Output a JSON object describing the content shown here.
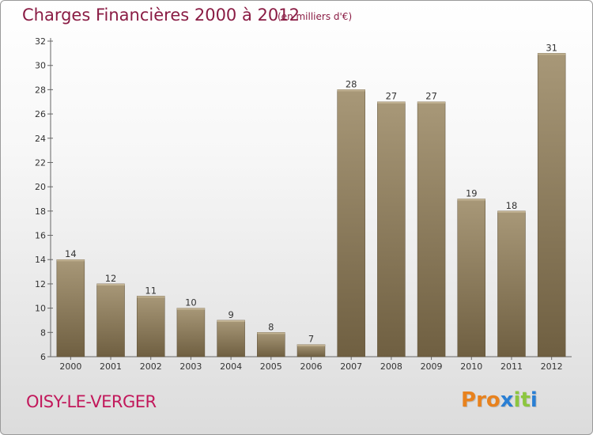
{
  "header": {
    "title": "Charges Financières 2000 à 2012",
    "subtitle": "(en milliers d'€)"
  },
  "footer": {
    "commune": "OISY-LE-VERGER",
    "logo_text": "Proxiti"
  },
  "colors": {
    "title": "#8a1c44",
    "commune": "#c2185b",
    "bar_top": "#a89878",
    "bar_bottom": "#6f5f41",
    "logo_letters": [
      "#e8821e",
      "#e8821e",
      "#e8821e",
      "#2a7fd4",
      "#8cc63f",
      "#8cc63f",
      "#2a7fd4"
    ]
  },
  "chart_data": {
    "type": "bar",
    "title": "Charges Financières 2000 à 2012",
    "subtitle": "(en milliers d'€)",
    "xlabel": "",
    "ylabel": "",
    "categories": [
      "2000",
      "2001",
      "2002",
      "2003",
      "2004",
      "2005",
      "2006",
      "2007",
      "2008",
      "2009",
      "2010",
      "2011",
      "2012"
    ],
    "values": [
      14,
      12,
      11,
      10,
      9,
      8,
      7,
      28,
      27,
      27,
      19,
      18,
      31
    ],
    "ylim": [
      6,
      32
    ],
    "yticks": [
      6,
      8,
      10,
      12,
      14,
      16,
      18,
      20,
      22,
      24,
      26,
      28,
      30,
      32
    ],
    "grid": false,
    "legend": "none"
  }
}
